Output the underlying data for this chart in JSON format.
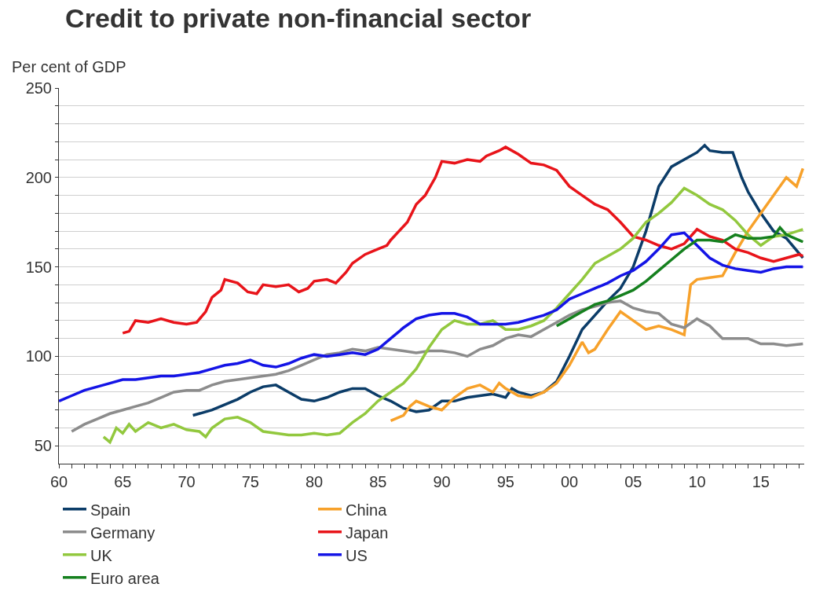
{
  "chart_data": {
    "type": "line",
    "title": "Credit to private non-financial sector",
    "subtitle": "Per cent of GDP",
    "xlim": [
      1960,
      2018.4
    ],
    "ylim": [
      40,
      250
    ],
    "xticks": [
      {
        "value": 1960,
        "label": "60"
      },
      {
        "value": 1961,
        "label": null
      },
      {
        "value": 1962,
        "label": null
      },
      {
        "value": 1963,
        "label": null
      },
      {
        "value": 1964,
        "label": null
      },
      {
        "value": 1965,
        "label": "65"
      },
      {
        "value": 1966,
        "label": null
      },
      {
        "value": 1967,
        "label": null
      },
      {
        "value": 1968,
        "label": null
      },
      {
        "value": 1969,
        "label": null
      },
      {
        "value": 1970,
        "label": "70"
      },
      {
        "value": 1971,
        "label": null
      },
      {
        "value": 1972,
        "label": null
      },
      {
        "value": 1973,
        "label": null
      },
      {
        "value": 1974,
        "label": null
      },
      {
        "value": 1975,
        "label": "75"
      },
      {
        "value": 1976,
        "label": null
      },
      {
        "value": 1977,
        "label": null
      },
      {
        "value": 1978,
        "label": null
      },
      {
        "value": 1979,
        "label": null
      },
      {
        "value": 1980,
        "label": "80"
      },
      {
        "value": 1981,
        "label": null
      },
      {
        "value": 1982,
        "label": null
      },
      {
        "value": 1983,
        "label": null
      },
      {
        "value": 1984,
        "label": null
      },
      {
        "value": 1985,
        "label": "85"
      },
      {
        "value": 1986,
        "label": null
      },
      {
        "value": 1987,
        "label": null
      },
      {
        "value": 1988,
        "label": null
      },
      {
        "value": 1989,
        "label": null
      },
      {
        "value": 1990,
        "label": "90"
      },
      {
        "value": 1991,
        "label": null
      },
      {
        "value": 1992,
        "label": null
      },
      {
        "value": 1993,
        "label": null
      },
      {
        "value": 1994,
        "label": null
      },
      {
        "value": 1995,
        "label": "95"
      },
      {
        "value": 1996,
        "label": null
      },
      {
        "value": 1997,
        "label": null
      },
      {
        "value": 1998,
        "label": null
      },
      {
        "value": 1999,
        "label": null
      },
      {
        "value": 2000,
        "label": "00"
      },
      {
        "value": 2001,
        "label": null
      },
      {
        "value": 2002,
        "label": null
      },
      {
        "value": 2003,
        "label": null
      },
      {
        "value": 2004,
        "label": null
      },
      {
        "value": 2005,
        "label": "05"
      },
      {
        "value": 2006,
        "label": null
      },
      {
        "value": 2007,
        "label": null
      },
      {
        "value": 2008,
        "label": null
      },
      {
        "value": 2009,
        "label": null
      },
      {
        "value": 2010,
        "label": "10"
      },
      {
        "value": 2011,
        "label": null
      },
      {
        "value": 2012,
        "label": null
      },
      {
        "value": 2013,
        "label": null
      },
      {
        "value": 2014,
        "label": null
      },
      {
        "value": 2015,
        "label": "15"
      },
      {
        "value": 2016,
        "label": null
      },
      {
        "value": 2017,
        "label": null
      },
      {
        "value": 2018,
        "label": null
      }
    ],
    "yticks": [
      50,
      {
        "value": 60,
        "label": null
      },
      {
        "value": 70,
        "label": null
      },
      {
        "value": 80,
        "label": null
      },
      {
        "value": 90,
        "label": null
      },
      100,
      {
        "value": 110,
        "label": null
      },
      {
        "value": 120,
        "label": null
      },
      {
        "value": 130,
        "label": null
      },
      {
        "value": 140,
        "label": null
      },
      150,
      {
        "value": 160,
        "label": null
      },
      {
        "value": 170,
        "label": null
      },
      {
        "value": 180,
        "label": null
      },
      {
        "value": 190,
        "label": null
      },
      200,
      {
        "value": 210,
        "label": null
      },
      {
        "value": 220,
        "label": null
      },
      {
        "value": 230,
        "label": null
      },
      {
        "value": 240,
        "label": null
      },
      250
    ],
    "grid": "y",
    "legend": "bottom",
    "marker": "none",
    "line_style": "solid",
    "series": [
      {
        "name": "Spain",
        "color": "#0b3c68",
        "x": [
          1970.5,
          1971,
          1972,
          1973,
          1974,
          1975,
          1976,
          1977,
          1978,
          1979,
          1980,
          1981,
          1982,
          1983,
          1984,
          1985,
          1986,
          1987,
          1988,
          1989,
          1990,
          1991,
          1992,
          1993,
          1994,
          1995,
          1995.5,
          1996,
          1997,
          1998,
          1999,
          2000,
          2001,
          2002,
          2003,
          2004,
          2005,
          2006,
          2007,
          2008,
          2009,
          2010,
          2010.6,
          2011,
          2012,
          2012.8,
          2013.5,
          2014,
          2015,
          2016,
          2017,
          2018.3
        ],
        "values": [
          67,
          68,
          70,
          73,
          76,
          80,
          83,
          84,
          80,
          76,
          75,
          77,
          80,
          82,
          82,
          78,
          75,
          71,
          69,
          70,
          75,
          75,
          77,
          78,
          79,
          77,
          82,
          80,
          78,
          80,
          86,
          100,
          115,
          123,
          131,
          138,
          150,
          170,
          195,
          206,
          210,
          214,
          218,
          215,
          214,
          214,
          200,
          192,
          180,
          170,
          166,
          155
        ]
      },
      {
        "name": "China",
        "color": "#f7a12a",
        "x": [
          1986,
          1987,
          1987.5,
          1988,
          1989,
          1990,
          1991,
          1992,
          1993,
          1994,
          1994.5,
          1995,
          1996,
          1997,
          1998,
          1999,
          2000,
          2001,
          2001.5,
          2002,
          2003,
          2004,
          2005,
          2006,
          2007,
          2008,
          2009,
          2009.5,
          2010,
          2011,
          2012,
          2013,
          2014,
          2015,
          2016,
          2017,
          2017.8,
          2018.3
        ],
        "values": [
          64,
          67,
          72,
          75,
          72,
          70,
          77,
          82,
          84,
          80,
          85,
          82,
          78,
          77,
          80,
          85,
          95,
          108,
          102,
          104,
          115,
          125,
          120,
          115,
          117,
          115,
          112,
          140,
          143,
          144,
          145,
          158,
          170,
          180,
          190,
          200,
          195,
          205
        ]
      },
      {
        "name": "Germany",
        "color": "#8c8c8c",
        "x": [
          1961,
          1962,
          1963,
          1964,
          1965,
          1966,
          1967,
          1968,
          1969,
          1970,
          1971,
          1972,
          1973,
          1974,
          1975,
          1976,
          1977,
          1978,
          1979,
          1980,
          1981,
          1982,
          1983,
          1984,
          1985,
          1986,
          1987,
          1988,
          1989,
          1990,
          1991,
          1992,
          1993,
          1994,
          1995,
          1996,
          1997,
          1998,
          1999,
          2000,
          2001,
          2002,
          2003,
          2004,
          2005,
          2006,
          2007,
          2008,
          2009,
          2010,
          2011,
          2012,
          2013,
          2014,
          2015,
          2016,
          2017,
          2018.3
        ],
        "values": [
          58,
          62,
          65,
          68,
          70,
          72,
          74,
          77,
          80,
          81,
          81,
          84,
          86,
          87,
          88,
          89,
          90,
          92,
          95,
          98,
          101,
          102,
          104,
          103,
          105,
          104,
          103,
          102,
          103,
          103,
          102,
          100,
          104,
          106,
          110,
          112,
          111,
          115,
          119,
          123,
          126,
          128,
          130,
          131,
          127,
          125,
          124,
          118,
          116,
          121,
          117,
          110,
          110,
          110,
          107,
          107,
          106,
          107
        ]
      },
      {
        "name": "Japan",
        "color": "#e8141a",
        "x": [
          1965,
          1965.5,
          1966,
          1967,
          1968,
          1969,
          1970,
          1970.8,
          1971.5,
          1972,
          1972.7,
          1973,
          1974,
          1974.8,
          1975.5,
          1976,
          1977,
          1978,
          1978.8,
          1979.5,
          1980,
          1981,
          1981.7,
          1982.5,
          1983,
          1984,
          1985,
          1985.7,
          1986,
          1987.3,
          1988,
          1988.7,
          1989.5,
          1990,
          1991,
          1992,
          1993,
          1993.5,
          1994.5,
          1995,
          1996,
          1997,
          1998,
          1999,
          2000,
          2001,
          2002,
          2003,
          2004,
          2005,
          2006,
          2007,
          2008,
          2009,
          2010,
          2011,
          2012,
          2013,
          2014,
          2015,
          2016,
          2017,
          2018,
          2018.3
        ],
        "values": [
          113,
          114,
          120,
          119,
          121,
          119,
          118,
          119,
          125,
          133,
          137,
          143,
          141,
          136,
          135,
          140,
          139,
          140,
          136,
          138,
          142,
          143,
          141,
          147,
          152,
          157,
          160,
          162,
          165,
          175,
          185,
          190,
          200,
          209,
          208,
          210,
          209,
          212,
          215,
          217,
          213,
          208,
          207,
          204,
          195,
          190,
          185,
          182,
          175,
          167,
          165,
          162,
          160,
          163,
          171,
          167,
          165,
          160,
          158,
          155,
          153,
          155,
          157,
          156
        ]
      },
      {
        "name": "UK",
        "color": "#92c83e",
        "x": [
          1963.5,
          1964,
          1964.5,
          1965,
          1965.5,
          1966,
          1967,
          1968,
          1969,
          1970,
          1971,
          1971.5,
          1972,
          1973,
          1974,
          1975,
          1976,
          1977,
          1978,
          1979,
          1980,
          1981,
          1982,
          1983,
          1984,
          1985,
          1986,
          1987,
          1988,
          1989,
          1990,
          1991,
          1992,
          1993,
          1994,
          1995,
          1996,
          1997,
          1998,
          1999,
          2000,
          2001,
          2002,
          2003,
          2004,
          2005,
          2006,
          2007,
          2008,
          2009,
          2010,
          2011,
          2012,
          2013,
          2014,
          2015,
          2016,
          2017,
          2018.3
        ],
        "values": [
          55,
          52,
          60,
          57,
          62,
          58,
          63,
          60,
          62,
          59,
          58,
          55,
          60,
          65,
          66,
          63,
          58,
          57,
          56,
          56,
          57,
          56,
          57,
          63,
          68,
          75,
          80,
          85,
          93,
          105,
          115,
          120,
          118,
          118,
          120,
          115,
          115,
          117,
          120,
          127,
          135,
          143,
          152,
          156,
          160,
          166,
          175,
          180,
          186,
          194,
          190,
          185,
          182,
          176,
          168,
          162,
          167,
          168,
          171
        ]
      },
      {
        "name": "US",
        "color": "#1414e6",
        "x": [
          1960,
          1961,
          1962,
          1963,
          1964,
          1965,
          1966,
          1967,
          1968,
          1969,
          1970,
          1971,
          1972,
          1973,
          1974,
          1975,
          1976,
          1977,
          1978,
          1979,
          1980,
          1981,
          1982,
          1983,
          1984,
          1985,
          1986,
          1987,
          1988,
          1989,
          1990,
          1991,
          1992,
          1993,
          1994,
          1995,
          1996,
          1997,
          1998,
          1999,
          2000,
          2001,
          2002,
          2003,
          2004,
          2005,
          2006,
          2007,
          2008,
          2009,
          2010,
          2011,
          2012,
          2013,
          2014,
          2015,
          2016,
          2017,
          2018.3
        ],
        "values": [
          75,
          78,
          81,
          83,
          85,
          87,
          87,
          88,
          89,
          89,
          90,
          91,
          93,
          95,
          96,
          98,
          95,
          94,
          96,
          99,
          101,
          100,
          101,
          102,
          101,
          104,
          110,
          116,
          121,
          123,
          124,
          124,
          122,
          118,
          118,
          118,
          119,
          121,
          123,
          126,
          132,
          135,
          138,
          141,
          145,
          148,
          153,
          160,
          168,
          169,
          162,
          155,
          151,
          149,
          148,
          147,
          149,
          150,
          150
        ]
      },
      {
        "name": "Euro area",
        "color": "#15801e",
        "x": [
          1999,
          2000,
          2001,
          2002,
          2003,
          2004,
          2005,
          2006,
          2007,
          2008,
          2009,
          2010,
          2011,
          2012,
          2013,
          2014,
          2015,
          2016,
          2016.5,
          2017,
          2018.3
        ],
        "values": [
          117,
          121,
          125,
          129,
          131,
          134,
          137,
          142,
          148,
          154,
          160,
          165,
          165,
          164,
          168,
          166,
          166,
          167,
          172,
          168,
          164
        ]
      }
    ]
  }
}
